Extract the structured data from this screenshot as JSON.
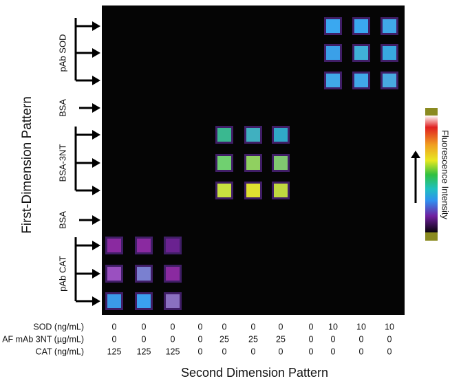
{
  "axis_titles": {
    "y": "First-Dimension Pattern",
    "x": "Second Dimension Pattern"
  },
  "row_groups": [
    "pAb SOD",
    "BSA",
    "BSA-3NT",
    "BSA",
    "pAb CAT"
  ],
  "table": {
    "row_labels": [
      "SOD (ng/mL)",
      "AF mAb 3NT (µg/mL)",
      "CAT (ng/mL)"
    ],
    "rows": [
      [
        0,
        0,
        0,
        0,
        0,
        0,
        0,
        0,
        10,
        10,
        10
      ],
      [
        0,
        0,
        0,
        0,
        25,
        25,
        25,
        0,
        0,
        0,
        0
      ],
      [
        125,
        125,
        125,
        0,
        0,
        0,
        0,
        0,
        0,
        0,
        0
      ]
    ]
  },
  "colorbar": {
    "label": "Fluorescence Intensity"
  }
}
